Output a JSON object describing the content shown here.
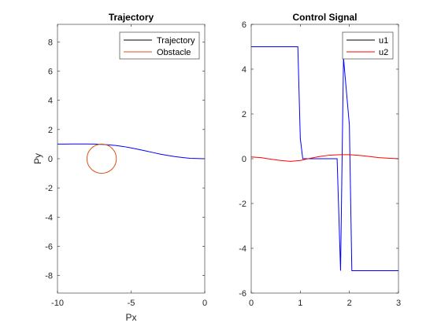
{
  "chart_data": [
    {
      "type": "line",
      "title": "Trajectory",
      "xlabel": "Px",
      "ylabel": "Py",
      "xlim": [
        -10,
        0
      ],
      "ylim": [
        -9.2,
        9.2
      ],
      "xticks": [
        -10,
        -5,
        0
      ],
      "yticks": [
        -8,
        -6,
        -4,
        -2,
        0,
        2,
        4,
        6,
        8
      ],
      "legend_position": "top-right",
      "series": [
        {
          "name": "Trajectory",
          "color": "#0000ff",
          "legend_color": "#000000",
          "x": [
            -10,
            -9.5,
            -9,
            -8.5,
            -8,
            -7.5,
            -7,
            -6.5,
            -6,
            -5.5,
            -5,
            -4.5,
            -4,
            -3.5,
            -3,
            -2.5,
            -2,
            -1.5,
            -1,
            -0.5,
            0
          ],
          "y": [
            1.0,
            1.0,
            1.01,
            1.01,
            1.01,
            1.0,
            0.98,
            0.95,
            0.9,
            0.83,
            0.74,
            0.64,
            0.53,
            0.42,
            0.31,
            0.22,
            0.14,
            0.08,
            0.03,
            0.01,
            0.0
          ]
        }
      ],
      "obstacle": {
        "name": "Obstacle",
        "color": "#d95319",
        "center": [
          -7,
          0
        ],
        "radius": 1
      }
    },
    {
      "type": "line",
      "title": "Control Signal",
      "xlabel": "",
      "ylabel": "",
      "xlim": [
        0,
        3
      ],
      "ylim": [
        -6,
        6
      ],
      "xticks": [
        0,
        1,
        2,
        3
      ],
      "yticks": [
        -6,
        -4,
        -2,
        0,
        2,
        4,
        6
      ],
      "legend_position": "top-right",
      "series": [
        {
          "name": "u1",
          "color": "#0000ff",
          "legend_color": "#000000",
          "x": [
            0,
            0.95,
            1.0,
            1.05,
            1.75,
            1.82,
            1.88,
            2.0,
            2.05,
            3.0
          ],
          "y": [
            5,
            5,
            0.9,
            0.0,
            0.0,
            -5.0,
            4.5,
            1.5,
            -5.0,
            -5.0
          ]
        },
        {
          "name": "u2",
          "color": "#ff0000",
          "legend_color": "#ff0000",
          "x": [
            0,
            0.2,
            0.4,
            0.6,
            0.8,
            1.0,
            1.2,
            1.4,
            1.6,
            1.8,
            2.0,
            2.2,
            2.4,
            2.6,
            2.8,
            3.0
          ],
          "y": [
            0.08,
            0.05,
            -0.02,
            -0.08,
            -0.12,
            -0.08,
            0.02,
            0.1,
            0.16,
            0.18,
            0.18,
            0.15,
            0.1,
            0.05,
            0.02,
            0.0
          ]
        }
      ]
    }
  ]
}
